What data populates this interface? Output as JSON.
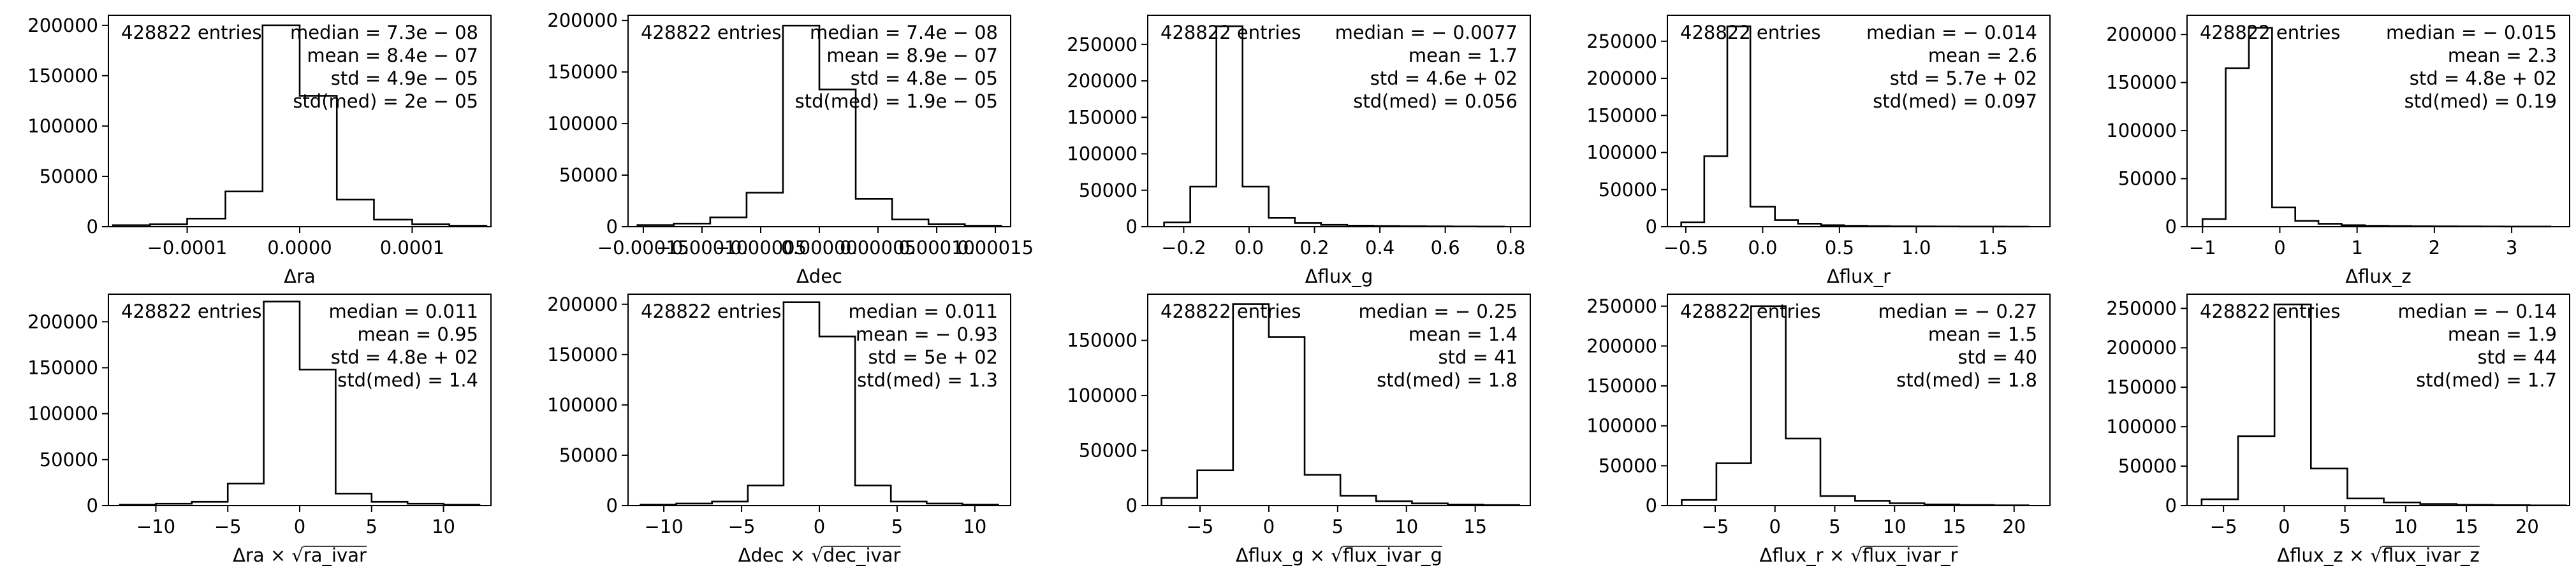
{
  "chart_data": [
    {
      "type": "histogram",
      "xlabel": "Δra",
      "entries_label": "428822 entries",
      "stats": [
        "median = 7.3e − 08",
        "mean = 8.4e − 07",
        "std = 4.9e − 05",
        "std(med) = 2e − 05"
      ],
      "xlim": [
        -0.00017,
        0.00017
      ],
      "ylim": [
        0,
        210000
      ],
      "xticks": [
        -0.0001,
        0,
        0.0001
      ],
      "xtick_labels": [
        "−0.0001",
        "0.0000",
        "0.0001"
      ],
      "yticks": [
        0,
        50000,
        100000,
        150000,
        200000
      ],
      "ytick_labels": [
        "0",
        "50000",
        "100000",
        "150000",
        "200000"
      ],
      "bin_edges": [
        -0.000166,
        -0.000133,
        -0.0001,
        -6.6e-05,
        -3.3e-05,
        0,
        3.3e-05,
        6.6e-05,
        0.0001,
        0.000133,
        0.000166
      ],
      "counts": [
        1500,
        2500,
        8000,
        35000,
        200000,
        130000,
        27000,
        7000,
        2500,
        1000
      ]
    },
    {
      "type": "histogram",
      "xlabel": "Δdec",
      "entries_label": "428822 entries",
      "stats": [
        "median = 7.4e − 08",
        "mean = 8.9e − 07",
        "std = 4.8e − 05",
        "std(med) = 1.9e − 05"
      ],
      "xlim": [
        -0.000163,
        0.000163
      ],
      "ylim": [
        0,
        205000
      ],
      "xticks": [
        -0.00015,
        -0.0001,
        -5e-05,
        0,
        5e-05,
        0.0001,
        0.00015
      ],
      "xtick_labels": [
        "−0.00015",
        "−0.00010",
        "−0.00005",
        "0.00000",
        "0.00005",
        "0.00010",
        "0.00015"
      ],
      "yticks": [
        0,
        50000,
        100000,
        150000,
        200000
      ],
      "ytick_labels": [
        "0",
        "50000",
        "100000",
        "150000",
        "200000"
      ],
      "bin_edges": [
        -0.000155,
        -0.000124,
        -9.3e-05,
        -6.2e-05,
        -3.1e-05,
        0,
        3.1e-05,
        6.2e-05,
        9.3e-05,
        0.000124,
        0.000155
      ],
      "counts": [
        1500,
        3000,
        9000,
        33000,
        195000,
        133000,
        27000,
        7000,
        2500,
        1000
      ]
    },
    {
      "type": "histogram",
      "xlabel": "Δflux_g",
      "entries_label": "428822 entries",
      "stats": [
        "median = − 0.0077",
        "mean = 1.7",
        "std = 4.6e + 02",
        "std(med) = 0.056"
      ],
      "xlim": [
        -0.31,
        0.86
      ],
      "ylim": [
        0,
        290000
      ],
      "xticks": [
        -0.2,
        0,
        0.2,
        0.4,
        0.6,
        0.8
      ],
      "xtick_labels": [
        "−0.2",
        "0.0",
        "0.2",
        "0.4",
        "0.6",
        "0.8"
      ],
      "yticks": [
        0,
        50000,
        100000,
        150000,
        200000,
        250000
      ],
      "ytick_labels": [
        "0",
        "50000",
        "100000",
        "150000",
        "200000",
        "250000"
      ],
      "bin_edges": [
        -0.26,
        -0.18,
        -0.1,
        -0.02,
        0.06,
        0.14,
        0.22,
        0.3,
        0.38,
        0.46,
        0.54,
        0.62,
        0.7,
        0.78
      ],
      "counts": [
        6000,
        55000,
        275000,
        55000,
        12000,
        5000,
        2500,
        1500,
        1000,
        700,
        500,
        300,
        200
      ]
    },
    {
      "type": "histogram",
      "xlabel": "Δflux_r",
      "entries_label": "428822 entries",
      "stats": [
        "median = − 0.014",
        "mean = 2.6",
        "std = 5.7e + 02",
        "std(med) = 0.097"
      ],
      "xlim": [
        -0.62,
        1.87
      ],
      "ylim": [
        0,
        285000
      ],
      "xticks": [
        -0.5,
        0,
        0.5,
        1,
        1.5
      ],
      "xtick_labels": [
        "−0.5",
        "0.0",
        "0.5",
        "1.0",
        "1.5"
      ],
      "yticks": [
        0,
        50000,
        100000,
        150000,
        200000,
        250000
      ],
      "ytick_labels": [
        "0",
        "50000",
        "100000",
        "150000",
        "200000",
        "250000"
      ],
      "bin_edges": [
        -0.53,
        -0.38,
        -0.23,
        -0.08,
        0.08,
        0.23,
        0.38,
        0.53,
        0.68,
        0.83,
        0.98,
        1.13,
        1.28,
        1.43,
        1.58,
        1.73
      ],
      "counts": [
        6000,
        95000,
        270000,
        27000,
        9000,
        4000,
        2000,
        1200,
        800,
        500,
        400,
        300,
        200,
        150,
        100
      ]
    },
    {
      "type": "histogram",
      "xlabel": "Δflux_z",
      "entries_label": "428822 entries",
      "stats": [
        "median = − 0.015",
        "mean = 2.3",
        "std = 4.8e + 02",
        "std(med) = 0.19"
      ],
      "xlim": [
        -1.2,
        3.75
      ],
      "ylim": [
        0,
        220000
      ],
      "xticks": [
        -1,
        0,
        1,
        2,
        3
      ],
      "xtick_labels": [
        "−1",
        "0",
        "1",
        "2",
        "3"
      ],
      "yticks": [
        0,
        50000,
        100000,
        150000,
        200000
      ],
      "ytick_labels": [
        "0",
        "50000",
        "100000",
        "150000",
        "200000"
      ],
      "bin_edges": [
        -1,
        -0.7,
        -0.4,
        -0.1,
        0.2,
        0.5,
        0.8,
        1.1,
        1.4,
        1.7,
        2,
        2.3,
        2.6,
        2.9,
        3.2,
        3.5
      ],
      "counts": [
        8000,
        165000,
        207000,
        20000,
        6000,
        3000,
        1500,
        1000,
        700,
        500,
        400,
        300,
        200,
        150,
        100
      ]
    },
    {
      "type": "histogram",
      "xlabel": "Δra × √ra_ivar",
      "entries_label": "428822 entries",
      "stats": [
        "median = 0.011",
        "mean = 0.95",
        "std = 4.8e + 02",
        "std(med) = 1.4"
      ],
      "xlim": [
        -13.3,
        13.3
      ],
      "ylim": [
        0,
        230000
      ],
      "xticks": [
        -10,
        -5,
        0,
        5,
        10
      ],
      "xtick_labels": [
        "−10",
        "−5",
        "0",
        "5",
        "10"
      ],
      "yticks": [
        0,
        50000,
        100000,
        150000,
        200000
      ],
      "ytick_labels": [
        "0",
        "50000",
        "100000",
        "150000",
        "200000"
      ],
      "bin_edges": [
        -12.5,
        -10,
        -7.5,
        -5,
        -2.5,
        0,
        2.5,
        5,
        7.5,
        10,
        12.5
      ],
      "counts": [
        1000,
        2000,
        4000,
        24000,
        222000,
        148000,
        13000,
        4000,
        2000,
        1000
      ]
    },
    {
      "type": "histogram",
      "xlabel": "Δdec × √dec_ivar",
      "entries_label": "428822 entries",
      "stats": [
        "median = 0.011",
        "mean = − 0.93",
        "std = 5e + 02",
        "std(med) = 1.3"
      ],
      "xlim": [
        -12.3,
        12.3
      ],
      "ylim": [
        0,
        210000
      ],
      "xticks": [
        -10,
        -5,
        0,
        5,
        10
      ],
      "xtick_labels": [
        "−10",
        "−5",
        "0",
        "5",
        "10"
      ],
      "yticks": [
        0,
        50000,
        100000,
        150000,
        200000
      ],
      "ytick_labels": [
        "0",
        "50000",
        "100000",
        "150000",
        "200000"
      ],
      "bin_edges": [
        -11.5,
        -9.2,
        -6.9,
        -4.6,
        -2.3,
        0,
        2.3,
        4.6,
        6.9,
        9.2,
        11.5
      ],
      "counts": [
        1000,
        2000,
        4000,
        20000,
        202000,
        168000,
        20000,
        4000,
        2000,
        1000
      ]
    },
    {
      "type": "histogram",
      "xlabel": "Δflux_g × √flux_ivar_g",
      "entries_label": "428822 entries",
      "stats": [
        "median = − 0.25",
        "mean = 1.4",
        "std = 41",
        "std(med) = 1.8"
      ],
      "xlim": [
        -8.8,
        19
      ],
      "ylim": [
        0,
        192000
      ],
      "xticks": [
        -5,
        0,
        5,
        10,
        15
      ],
      "xtick_labels": [
        "−5",
        "0",
        "5",
        "10",
        "15"
      ],
      "yticks": [
        0,
        50000,
        100000,
        150000
      ],
      "ytick_labels": [
        "0",
        "50000",
        "100000",
        "150000"
      ],
      "bin_edges": [
        -7.8,
        -5.2,
        -2.6,
        0,
        2.6,
        5.2,
        7.8,
        10.4,
        13,
        15.6,
        18.2
      ],
      "counts": [
        7000,
        32000,
        183000,
        153000,
        28000,
        9000,
        4000,
        2000,
        1000,
        500
      ]
    },
    {
      "type": "histogram",
      "xlabel": "Δflux_r × √flux_ivar_r",
      "entries_label": "428822 entries",
      "stats": [
        "median = − 0.27",
        "mean = 1.5",
        "std = 40",
        "std(med) = 1.8"
      ],
      "xlim": [
        -9,
        23
      ],
      "ylim": [
        0,
        265000
      ],
      "xticks": [
        -5,
        0,
        5,
        10,
        15,
        20
      ],
      "xtick_labels": [
        "−5",
        "0",
        "5",
        "10",
        "15",
        "20"
      ],
      "yticks": [
        0,
        50000,
        100000,
        150000,
        200000,
        250000
      ],
      "ytick_labels": [
        "0",
        "50000",
        "100000",
        "150000",
        "200000",
        "250000"
      ],
      "bin_edges": [
        -7.8,
        -4.9,
        -2,
        0.9,
        3.8,
        6.7,
        9.6,
        12.5,
        15.4,
        18.3,
        21.2
      ],
      "counts": [
        7000,
        53000,
        250000,
        84000,
        12000,
        6000,
        3000,
        1500,
        800,
        400
      ]
    },
    {
      "type": "histogram",
      "xlabel": "Δflux_z × √flux_ivar_z",
      "entries_label": "428822 entries",
      "stats": [
        "median = − 0.14",
        "mean = 1.9",
        "std = 44",
        "std(med) = 1.7"
      ],
      "xlim": [
        -8,
        23.5
      ],
      "ylim": [
        0,
        268000
      ],
      "xticks": [
        -5,
        0,
        5,
        10,
        15,
        20
      ],
      "xtick_labels": [
        "−5",
        "0",
        "5",
        "10",
        "15",
        "20"
      ],
      "yticks": [
        0,
        50000,
        100000,
        150000,
        200000,
        250000
      ],
      "ytick_labels": [
        "0",
        "50000",
        "100000",
        "150000",
        "200000",
        "250000"
      ],
      "bin_edges": [
        -6.8,
        -3.8,
        -0.8,
        2.2,
        5.2,
        8.2,
        11.2,
        14.2,
        17.2,
        20.2,
        23.2
      ],
      "counts": [
        8000,
        88000,
        255000,
        47000,
        9000,
        4000,
        2000,
        1000,
        600,
        300
      ]
    }
  ]
}
